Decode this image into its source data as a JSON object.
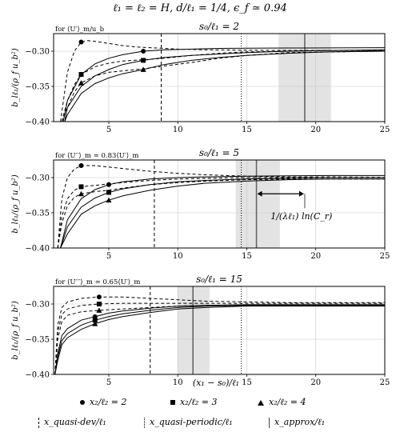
{
  "figure_title": "ℓ₁ = ℓ₂ = H, d/ℓ₁ = 1/4, ϵ_f ≃ 0.94",
  "y_label": "b_lℓ₁/(ρ_f u_b²)",
  "x_label": "(x₁ − s₀)/ℓ₁",
  "legend": {
    "series": [
      {
        "label": "x₂/ℓ₂ = 2",
        "marker": "circle"
      },
      {
        "label": "x₂/ℓ₂ = 3",
        "marker": "square"
      },
      {
        "label": "x₂/ℓ₂ = 4",
        "marker": "triangle"
      }
    ],
    "lines": [
      {
        "label": "x_quasi-dev/ℓ₁",
        "style": "dashed"
      },
      {
        "label": "x_quasi-periodic/ℓ₁",
        "style": "dotted"
      },
      {
        "label": "x_approx/ℓ₁",
        "style": "solid"
      }
    ]
  },
  "chart_data": [
    {
      "type": "line",
      "title": "s₀/ℓ₁ = 2",
      "corner_label": "for ⟨U′⟩_m/u_b",
      "xlim": [
        1,
        25
      ],
      "ylim": [
        -0.4,
        -0.275
      ],
      "xticks": [
        5,
        10,
        15,
        20,
        25
      ],
      "yticks": [
        -0.4,
        -0.35,
        -0.3
      ],
      "grid": true,
      "x_quasi_dev": 8.8,
      "x_quasi_periodic": 14.6,
      "x_approx": 19.2,
      "approx_band": [
        17.3,
        21.1
      ],
      "series": [
        {
          "marker": "circle",
          "style": "dashed",
          "marker_x": 3,
          "marker_y": -0.287,
          "x": [
            1.5,
            2,
            2.5,
            3,
            3.5,
            4,
            5,
            6,
            7,
            8,
            10,
            12,
            15,
            18,
            21,
            25
          ],
          "y": [
            -0.4,
            -0.33,
            -0.3,
            -0.287,
            -0.285,
            -0.286,
            -0.289,
            -0.292,
            -0.294,
            -0.295,
            -0.297,
            -0.298,
            -0.2985,
            -0.299,
            -0.299,
            -0.299
          ]
        },
        {
          "marker": "circle",
          "style": "solid",
          "marker_x": 7.5,
          "marker_y": -0.3,
          "x": [
            1.7,
            2,
            3,
            4,
            5,
            6,
            7.5,
            9,
            11,
            13,
            15,
            18,
            21,
            25
          ],
          "y": [
            -0.4,
            -0.37,
            -0.333,
            -0.318,
            -0.31,
            -0.305,
            -0.3,
            -0.298,
            -0.297,
            -0.296,
            -0.2958,
            -0.2955,
            -0.2953,
            -0.295
          ]
        },
        {
          "marker": "square",
          "style": "dashed",
          "marker_x": 3,
          "marker_y": -0.333,
          "x": [
            1.6,
            2,
            2.5,
            3,
            4,
            5,
            6,
            7.5,
            9,
            11,
            13,
            15,
            18,
            21,
            25
          ],
          "y": [
            -0.4,
            -0.37,
            -0.348,
            -0.333,
            -0.322,
            -0.317,
            -0.314,
            -0.312,
            -0.31,
            -0.306,
            -0.303,
            -0.301,
            -0.3,
            -0.299,
            -0.299
          ]
        },
        {
          "marker": "square",
          "style": "solid",
          "marker_x": 7.5,
          "marker_y": -0.313,
          "x": [
            1.8,
            2,
            3,
            4,
            5,
            6,
            7.5,
            9,
            11,
            13,
            15,
            18,
            21,
            25
          ],
          "y": [
            -0.4,
            -0.38,
            -0.35,
            -0.335,
            -0.326,
            -0.319,
            -0.313,
            -0.309,
            -0.306,
            -0.304,
            -0.302,
            -0.3,
            -0.299,
            -0.298
          ]
        },
        {
          "marker": "triangle",
          "style": "dashed",
          "marker_x": 3,
          "marker_y": -0.345,
          "x": [
            1.6,
            2,
            2.5,
            3,
            4,
            5,
            6,
            7.5,
            9,
            11,
            13,
            15,
            18,
            21,
            25
          ],
          "y": [
            -0.4,
            -0.38,
            -0.358,
            -0.345,
            -0.335,
            -0.33,
            -0.328,
            -0.325,
            -0.321,
            -0.316,
            -0.31,
            -0.306,
            -0.302,
            -0.301,
            -0.3
          ]
        },
        {
          "marker": "triangle",
          "style": "solid",
          "marker_x": 7.5,
          "marker_y": -0.326,
          "x": [
            1.8,
            2,
            3,
            4,
            5,
            6,
            7.5,
            9,
            11,
            13,
            15,
            18,
            21,
            25
          ],
          "y": [
            -0.4,
            -0.39,
            -0.36,
            -0.346,
            -0.338,
            -0.332,
            -0.326,
            -0.319,
            -0.313,
            -0.309,
            -0.306,
            -0.303,
            -0.301,
            -0.3
          ]
        }
      ]
    },
    {
      "type": "line",
      "title": "s₀/ℓ₁ = 5",
      "corner_label": "for ⟨U′′⟩_m ≃ 0.83⟨U′⟩_m",
      "xlim": [
        1,
        25
      ],
      "ylim": [
        -0.4,
        -0.275
      ],
      "xticks": [
        5,
        10,
        15,
        20,
        25
      ],
      "yticks": [
        -0.4,
        -0.35,
        -0.3
      ],
      "grid": true,
      "x_quasi_dev": 8.3,
      "x_quasi_periodic": 14.6,
      "x_approx": 15.7,
      "approx_band": [
        14.2,
        17.4
      ],
      "annotation": {
        "text": "1/(λℓ₁) ln(C_r)",
        "from_x": 15.7,
        "to_x": 19.2,
        "y": -0.323
      },
      "series": [
        {
          "marker": "circle",
          "style": "dashed",
          "marker_x": 3,
          "marker_y": -0.283,
          "x": [
            1.3,
            1.6,
            2,
            2.5,
            3,
            4,
            5,
            6,
            8,
            10,
            12,
            15,
            18,
            21,
            25
          ],
          "y": [
            -0.4,
            -0.33,
            -0.3,
            -0.288,
            -0.283,
            -0.283,
            -0.285,
            -0.287,
            -0.291,
            -0.294,
            -0.296,
            -0.298,
            -0.299,
            -0.299,
            -0.2995
          ]
        },
        {
          "marker": "circle",
          "style": "solid",
          "marker_x": 5,
          "marker_y": -0.31,
          "x": [
            1.5,
            2,
            3,
            4,
            5,
            6,
            8,
            10,
            12,
            15,
            18,
            21,
            25
          ],
          "y": [
            -0.4,
            -0.36,
            -0.33,
            -0.317,
            -0.31,
            -0.306,
            -0.302,
            -0.3,
            -0.299,
            -0.298,
            -0.2975,
            -0.297,
            -0.297
          ]
        },
        {
          "marker": "square",
          "style": "dashed",
          "marker_x": 3,
          "marker_y": -0.313,
          "x": [
            1.3,
            1.6,
            2,
            2.5,
            3,
            4,
            5,
            6,
            8,
            10,
            12,
            15,
            18,
            21,
            25
          ],
          "y": [
            -0.4,
            -0.355,
            -0.33,
            -0.318,
            -0.313,
            -0.311,
            -0.309,
            -0.307,
            -0.304,
            -0.302,
            -0.301,
            -0.3,
            -0.3,
            -0.3,
            -0.3
          ]
        },
        {
          "marker": "square",
          "style": "solid",
          "marker_x": 5,
          "marker_y": -0.321,
          "x": [
            1.5,
            2,
            3,
            4,
            5,
            6,
            8,
            10,
            12,
            15,
            18,
            21,
            25
          ],
          "y": [
            -0.4,
            -0.37,
            -0.342,
            -0.329,
            -0.321,
            -0.316,
            -0.31,
            -0.306,
            -0.304,
            -0.302,
            -0.301,
            -0.3,
            -0.3
          ]
        },
        {
          "marker": "triangle",
          "style": "dashed",
          "marker_x": 3,
          "marker_y": -0.323,
          "x": [
            1.3,
            1.6,
            2,
            2.5,
            3,
            4,
            5,
            6,
            8,
            10,
            12,
            15,
            18,
            21,
            25
          ],
          "y": [
            -0.4,
            -0.365,
            -0.34,
            -0.328,
            -0.323,
            -0.32,
            -0.318,
            -0.315,
            -0.31,
            -0.307,
            -0.305,
            -0.303,
            -0.302,
            -0.302,
            -0.302
          ]
        },
        {
          "marker": "triangle",
          "style": "solid",
          "marker_x": 5,
          "marker_y": -0.332,
          "x": [
            1.5,
            2,
            3,
            4,
            5,
            6,
            8,
            10,
            12,
            15,
            18,
            21,
            25
          ],
          "y": [
            -0.4,
            -0.38,
            -0.352,
            -0.34,
            -0.332,
            -0.326,
            -0.318,
            -0.312,
            -0.308,
            -0.305,
            -0.303,
            -0.302,
            -0.302
          ]
        }
      ]
    },
    {
      "type": "line",
      "title": "s₀/ℓ₁ = 15",
      "corner_label": "for ⟨U′′′⟩_m ≃ 0.65⟨U′⟩_m",
      "xlim": [
        1,
        25
      ],
      "ylim": [
        -0.4,
        -0.275
      ],
      "xticks": [
        5,
        10,
        15,
        20,
        25
      ],
      "yticks": [
        -0.4,
        -0.35,
        -0.3
      ],
      "grid": true,
      "x_quasi_dev": 8.0,
      "x_quasi_periodic": 14.6,
      "x_approx": 11.1,
      "approx_band": [
        10.0,
        12.3
      ],
      "series": [
        {
          "marker": "circle",
          "style": "dashed",
          "marker_x": 4.3,
          "marker_y": -0.29,
          "x": [
            1.1,
            1.3,
            1.6,
            2,
            3,
            4.3,
            6,
            8,
            10,
            12,
            15,
            18,
            21,
            25
          ],
          "y": [
            -0.4,
            -0.33,
            -0.305,
            -0.297,
            -0.292,
            -0.29,
            -0.29,
            -0.292,
            -0.294,
            -0.296,
            -0.297,
            -0.298,
            -0.298,
            -0.298
          ]
        },
        {
          "marker": "circle",
          "style": "solid",
          "marker_x": 4,
          "marker_y": -0.318,
          "x": [
            1.1,
            1.3,
            1.6,
            2,
            3,
            4,
            5,
            6,
            8,
            10,
            12,
            15,
            18,
            21,
            25
          ],
          "y": [
            -0.4,
            -0.37,
            -0.345,
            -0.335,
            -0.323,
            -0.318,
            -0.313,
            -0.31,
            -0.306,
            -0.303,
            -0.302,
            -0.301,
            -0.301,
            -0.301,
            -0.301
          ]
        },
        {
          "marker": "square",
          "style": "dashed",
          "marker_x": 4.3,
          "marker_y": -0.3,
          "x": [
            1.1,
            1.3,
            1.6,
            2,
            3,
            4.3,
            6,
            8,
            10,
            12,
            15,
            18,
            21,
            25
          ],
          "y": [
            -0.4,
            -0.34,
            -0.315,
            -0.307,
            -0.302,
            -0.3,
            -0.299,
            -0.299,
            -0.299,
            -0.299,
            -0.299,
            -0.299,
            -0.299,
            -0.299
          ]
        },
        {
          "marker": "square",
          "style": "solid",
          "marker_x": 4,
          "marker_y": -0.323,
          "x": [
            1.1,
            1.3,
            1.6,
            2,
            3,
            4,
            5,
            6,
            8,
            10,
            12,
            15,
            18,
            21,
            25
          ],
          "y": [
            -0.4,
            -0.375,
            -0.352,
            -0.342,
            -0.33,
            -0.323,
            -0.318,
            -0.314,
            -0.309,
            -0.305,
            -0.303,
            -0.302,
            -0.302,
            -0.302,
            -0.302
          ]
        },
        {
          "marker": "triangle",
          "style": "dashed",
          "marker_x": 4.3,
          "marker_y": -0.309,
          "x": [
            1.1,
            1.3,
            1.6,
            2,
            3,
            4.3,
            6,
            8,
            10,
            12,
            15,
            18,
            21,
            25
          ],
          "y": [
            -0.4,
            -0.35,
            -0.325,
            -0.316,
            -0.311,
            -0.309,
            -0.307,
            -0.305,
            -0.303,
            -0.302,
            -0.301,
            -0.301,
            -0.301,
            -0.301
          ]
        },
        {
          "marker": "triangle",
          "style": "solid",
          "marker_x": 4,
          "marker_y": -0.328,
          "x": [
            1.1,
            1.3,
            1.6,
            2,
            3,
            4,
            5,
            6,
            8,
            10,
            12,
            15,
            18,
            21,
            25
          ],
          "y": [
            -0.4,
            -0.38,
            -0.358,
            -0.348,
            -0.336,
            -0.328,
            -0.322,
            -0.318,
            -0.312,
            -0.307,
            -0.305,
            -0.303,
            -0.303,
            -0.303,
            -0.303
          ]
        }
      ]
    }
  ]
}
